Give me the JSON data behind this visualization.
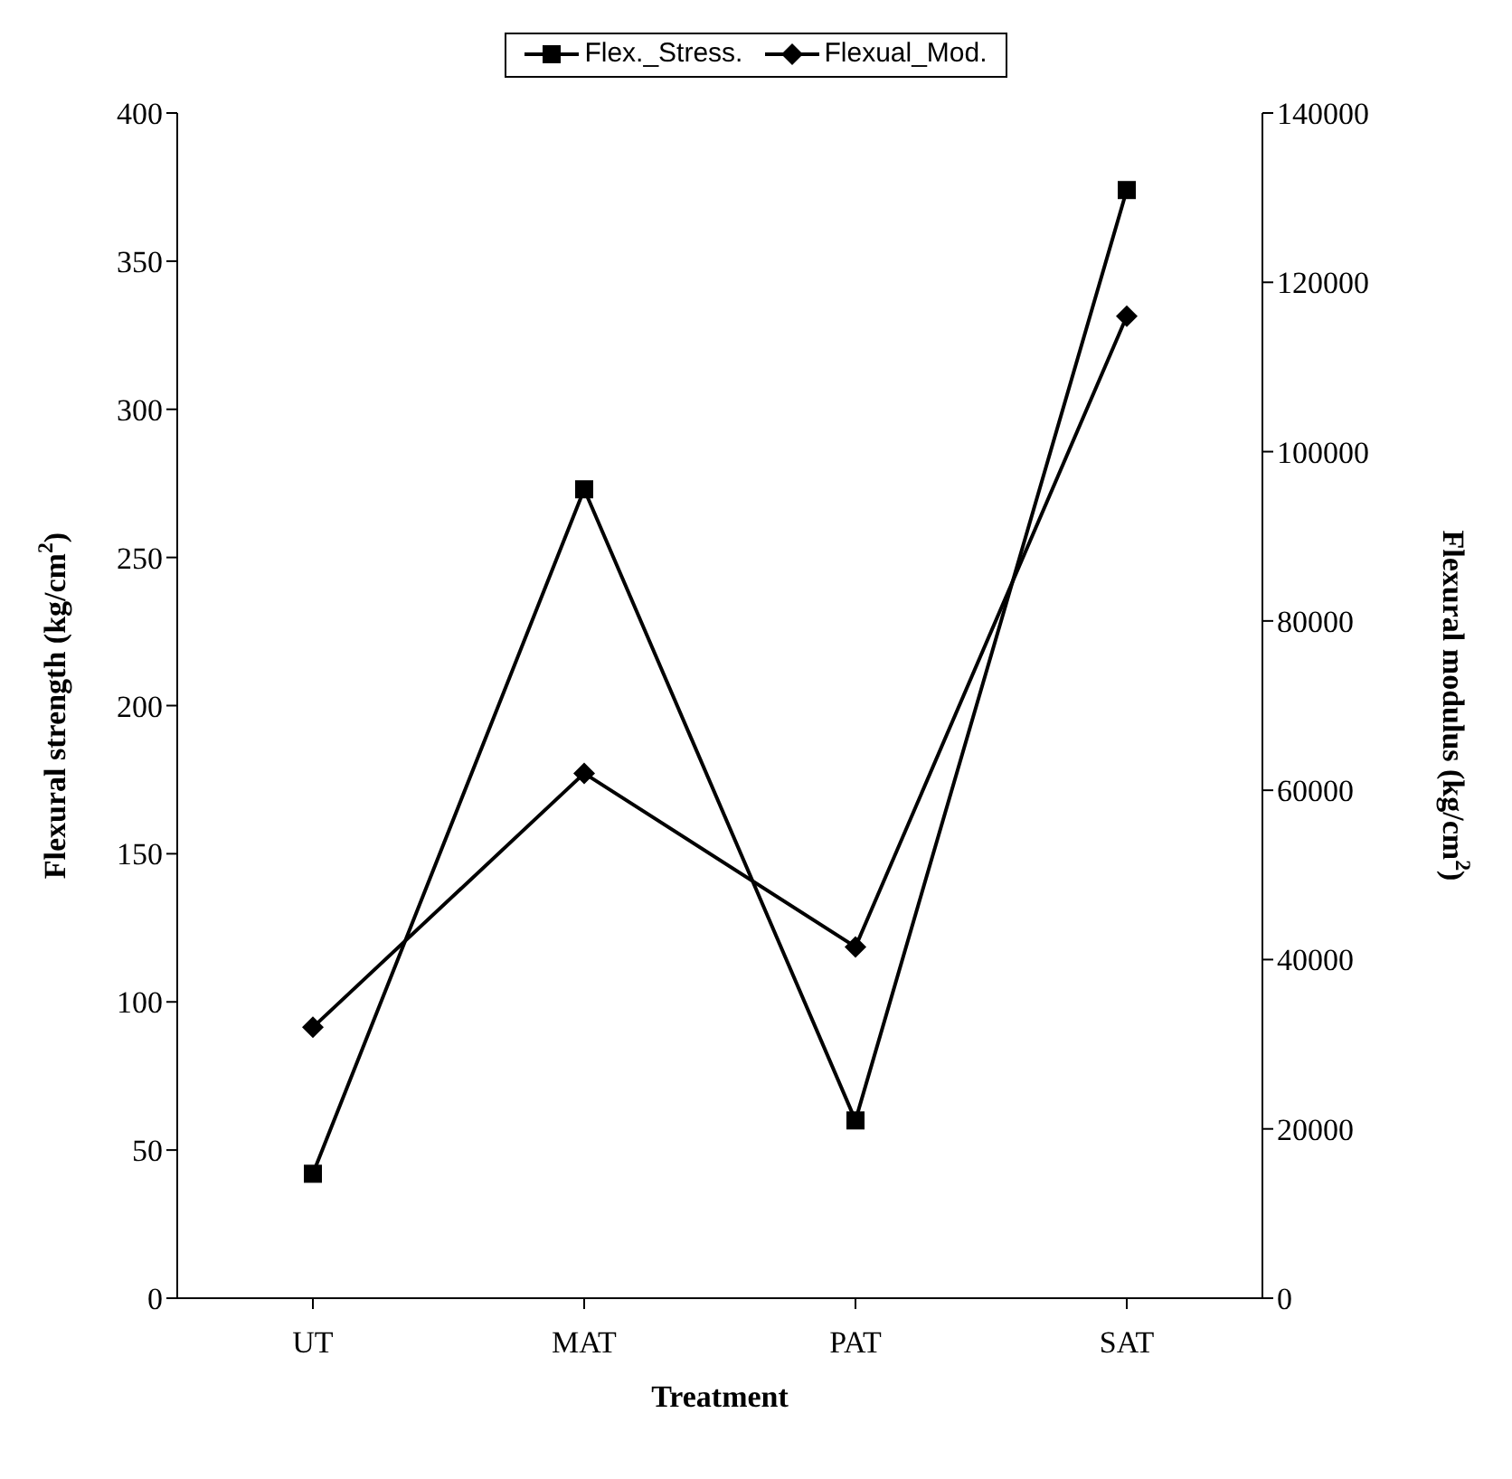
{
  "chart_data": {
    "type": "line",
    "xlabel": "Treatment",
    "ylabel": "Flexural strength (kg/cm$^{2}$)",
    "y2label": "Flexural modulus (kg/cm$^{2}$)",
    "categories": [
      "UT",
      "MAT",
      "PAT",
      "SAT"
    ],
    "series": [
      {
        "name": "Flex._Stress.",
        "color": "#000000",
        "marker": "square",
        "values": [
          42,
          273,
          60,
          374
        ]
      },
      {
        "name": "Flexual_Mod.",
        "color": "#000000",
        "marker": "diamond",
        "axis": "y2",
        "values": [
          32000,
          62000,
          41500,
          116000
        ]
      }
    ],
    "ylim": [
      0,
      400
    ],
    "yticks": [
      0,
      50,
      100,
      150,
      200,
      250,
      300,
      350,
      400
    ],
    "y2lim": [
      0,
      140000
    ],
    "y2ticks": [
      0,
      20000,
      40000,
      60000,
      80000,
      100000,
      120000,
      140000
    ],
    "legend": "top",
    "grid": false,
    "line_style": "solid"
  }
}
